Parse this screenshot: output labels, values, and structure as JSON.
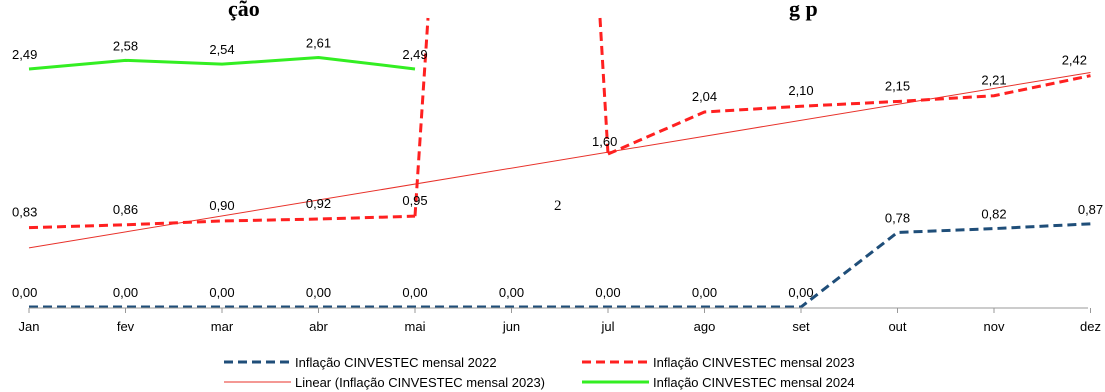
{
  "chart_data": {
    "type": "line",
    "title": "",
    "xlabel": "",
    "ylabel": "",
    "categories": [
      "Jan",
      "fev",
      "mar",
      "abr",
      "mai",
      "jun",
      "jul",
      "ago",
      "set",
      "out",
      "nov",
      "dez"
    ],
    "title_fragments": [
      {
        "id": "left",
        "text": "ção"
      },
      {
        "id": "right",
        "text": "g p"
      }
    ],
    "stray_text": "2",
    "legend_placement": "bottom",
    "series": [
      {
        "name": "Inflação CINVESTEC mensal 2022",
        "color": "#1f4e79",
        "style": "dashed",
        "values": [
          0.0,
          0.0,
          0.0,
          0.0,
          0.0,
          0.0,
          0.0,
          0.0,
          0.0,
          0.78,
          0.82,
          0.87
        ],
        "labels": [
          "0,00",
          "0,00",
          "0,00",
          "0,00",
          "0,00",
          "0,00",
          "0,00",
          "0,00",
          "0,00",
          "0,78",
          "0,82",
          "0,87"
        ]
      },
      {
        "name": "Inflação CINVESTEC mensal 2023",
        "color": "#ff2020",
        "style": "dashed",
        "values": [
          0.83,
          0.86,
          0.9,
          0.92,
          0.95,
          null,
          1.6,
          2.04,
          2.1,
          2.15,
          2.21,
          2.42
        ],
        "labels": [
          "0,83",
          "0,86",
          "0,90",
          "0,92",
          "0,95",
          "",
          "1,60",
          "2,04",
          "2,10",
          "2,15",
          "2,21",
          "2,42"
        ]
      },
      {
        "name": "Linear (Inflação CINVESTEC mensal 2023)",
        "color": "#e8312a",
        "style": "thin"
      },
      {
        "name": "Inflação CINVESTEC mensal 2024",
        "color": "#33ee22",
        "style": "solid",
        "values": [
          2.49,
          2.58,
          2.54,
          2.61,
          2.49,
          null,
          null,
          null,
          null,
          null,
          null,
          null
        ],
        "labels": [
          "2,49",
          "2,58",
          "2,54",
          "2,61",
          "2,49",
          "",
          "",
          "",
          "",
          "",
          "",
          ""
        ]
      }
    ]
  }
}
